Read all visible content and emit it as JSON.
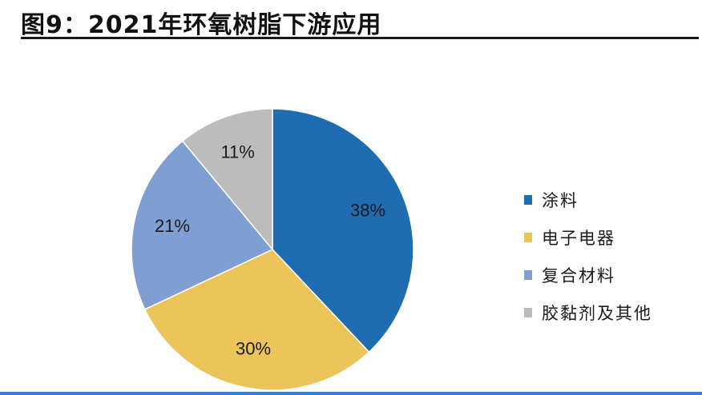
{
  "title": "图9：2021年环氧树脂下游应用",
  "colors": {
    "title_rule": "#1a1a1a",
    "bottom_bar": "#2f7fd8"
  },
  "chart_data": {
    "type": "pie",
    "start_angle_deg": 0,
    "direction": "clockwise",
    "slices": [
      {
        "label": "涂料",
        "value": 38,
        "display": "38%",
        "color": "#1f6db0"
      },
      {
        "label": "电子电器",
        "value": 30,
        "display": "30%",
        "color": "#ebc55a"
      },
      {
        "label": "复合材料",
        "value": 21,
        "display": "21%",
        "color": "#7f9fd3"
      },
      {
        "label": "胶黏剂及其他",
        "value": 11,
        "display": "11%",
        "color": "#bcbcbc"
      }
    ],
    "legend_position": "right"
  }
}
